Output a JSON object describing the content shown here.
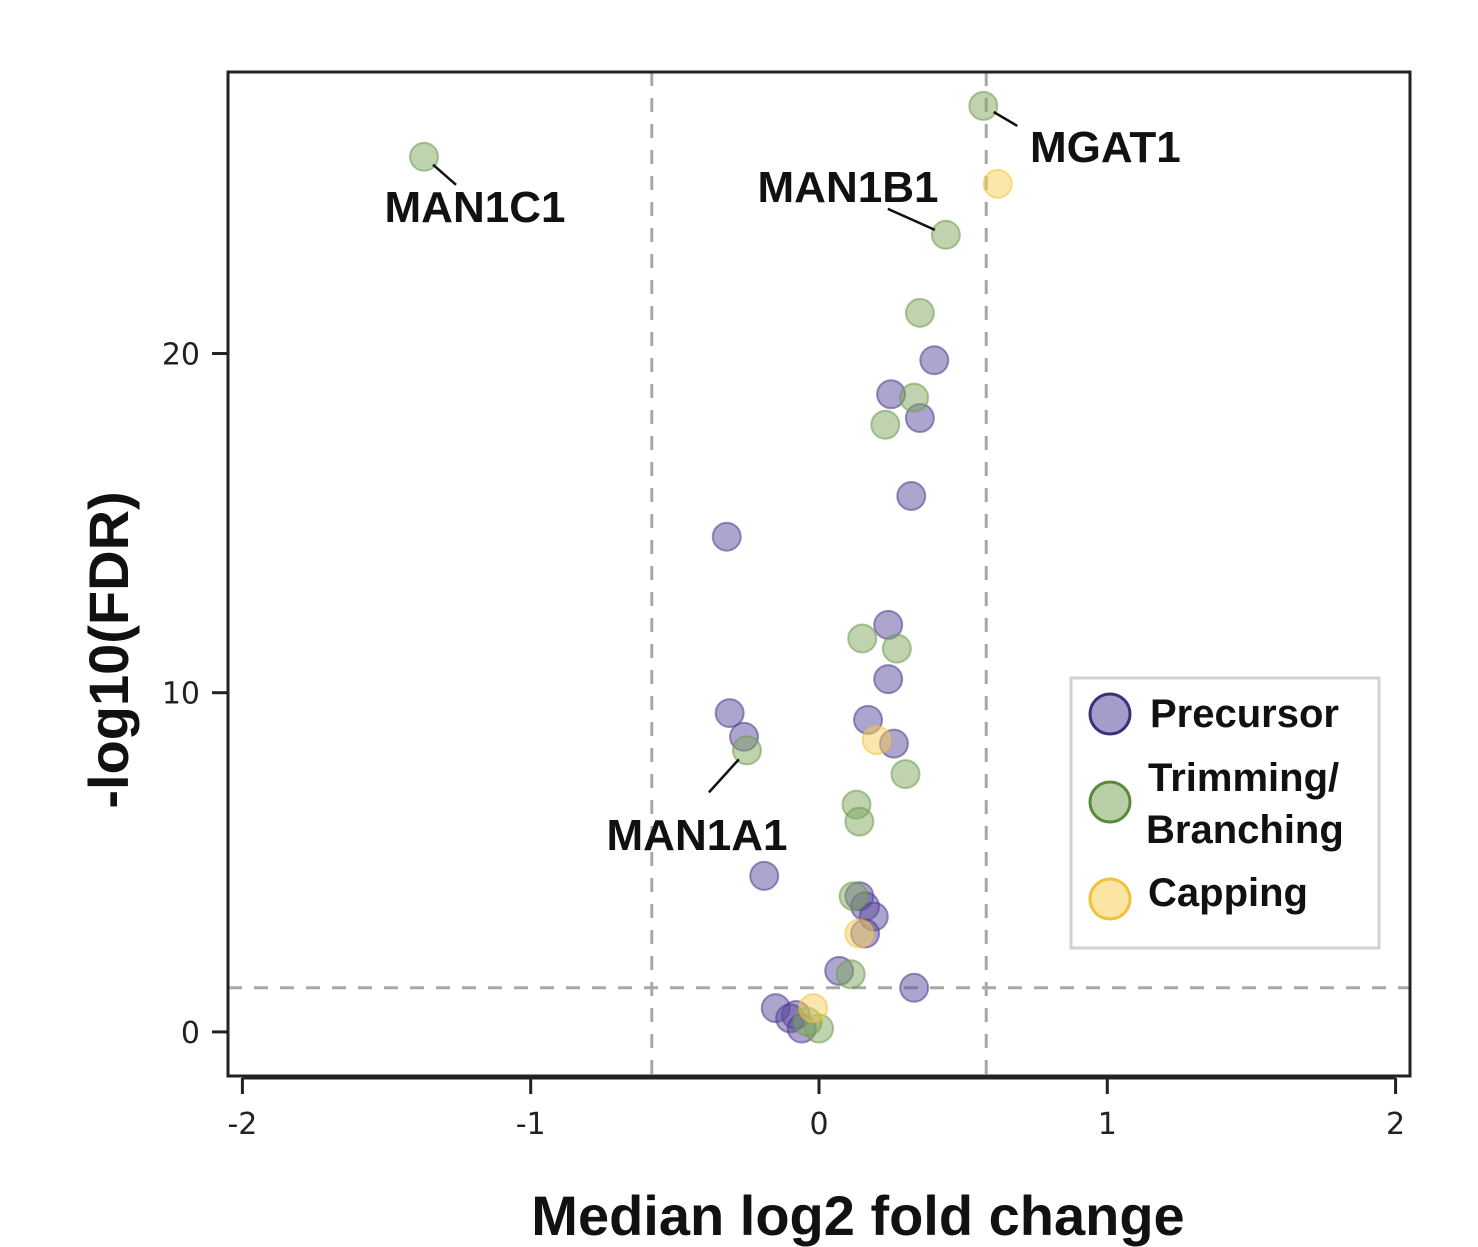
{
  "chart_data": {
    "type": "scatter",
    "title": "",
    "xlabel": "Median log2 fold change",
    "ylabel": "-log10(FDR)",
    "xlim": [
      -2.05,
      2.05
    ],
    "ylim": [
      -1.3,
      28.3
    ],
    "x_ticks": [
      -2,
      -1,
      0,
      1,
      2
    ],
    "x_tick_labels": [
      "-2",
      "-1",
      "0",
      "1",
      "2"
    ],
    "y_ticks": [
      0,
      10,
      20
    ],
    "y_tick_labels": [
      "0",
      "10",
      "20"
    ],
    "grid": false,
    "threshold_lines": {
      "x": [
        -0.58,
        0.58
      ],
      "y": [
        1.3
      ]
    },
    "legend": {
      "position": "right",
      "entries": [
        {
          "key": "Precursor",
          "label": "Precursor",
          "color": "#5b4b9e"
        },
        {
          "key": "Trimming",
          "label": "Trimming/ Branching",
          "label_lines": [
            "Trimming/",
            "Branching"
          ],
          "color": "#7fa860"
        },
        {
          "key": "Capping",
          "label": "Capping",
          "color": "#f5cf58"
        }
      ]
    },
    "series": [
      {
        "name": "Precursor",
        "color": "#5b4b9e",
        "points": [
          [
            0.4,
            19.8
          ],
          [
            0.25,
            18.8
          ],
          [
            0.35,
            18.1
          ],
          [
            0.32,
            15.8
          ],
          [
            -0.32,
            14.6
          ],
          [
            0.24,
            12.0
          ],
          [
            0.24,
            10.4
          ],
          [
            -0.31,
            9.4
          ],
          [
            0.17,
            9.2
          ],
          [
            -0.26,
            8.7
          ],
          [
            0.26,
            8.5
          ],
          [
            -0.19,
            4.6
          ],
          [
            0.14,
            4.0
          ],
          [
            0.16,
            3.7
          ],
          [
            0.19,
            3.4
          ],
          [
            0.07,
            1.8
          ],
          [
            0.33,
            1.3
          ],
          [
            -0.15,
            0.7
          ],
          [
            -0.08,
            0.5
          ],
          [
            -0.1,
            0.4
          ],
          [
            -0.06,
            0.1
          ],
          [
            0.16,
            2.9
          ]
        ]
      },
      {
        "name": "Trimming/ Branching",
        "color": "#7fa860",
        "points": [
          [
            -1.37,
            25.8
          ],
          [
            0.57,
            27.3
          ],
          [
            0.44,
            23.5
          ],
          [
            0.35,
            21.2
          ],
          [
            0.33,
            18.7
          ],
          [
            0.23,
            17.9
          ],
          [
            0.15,
            11.6
          ],
          [
            0.27,
            11.3
          ],
          [
            -0.25,
            8.3
          ],
          [
            0.3,
            7.6
          ],
          [
            0.13,
            6.7
          ],
          [
            0.14,
            6.2
          ],
          [
            0.12,
            4.0
          ],
          [
            0.11,
            1.7
          ],
          [
            0.0,
            0.1
          ],
          [
            -0.04,
            0.3
          ]
        ]
      },
      {
        "name": "Capping",
        "color": "#f5cf58",
        "points": [
          [
            0.62,
            25.0
          ],
          [
            0.2,
            8.6
          ],
          [
            -0.02,
            0.7
          ],
          [
            0.14,
            2.9
          ]
        ]
      }
    ],
    "annotations": [
      {
        "label": "MAN1C1",
        "x": -1.37,
        "y": 25.8
      },
      {
        "label": "MGAT1",
        "x": 0.57,
        "y": 27.3
      },
      {
        "label": "MAN1B1",
        "x": 0.44,
        "y": 23.5
      },
      {
        "label": "MAN1A1",
        "x": -0.25,
        "y": 8.3
      }
    ]
  }
}
